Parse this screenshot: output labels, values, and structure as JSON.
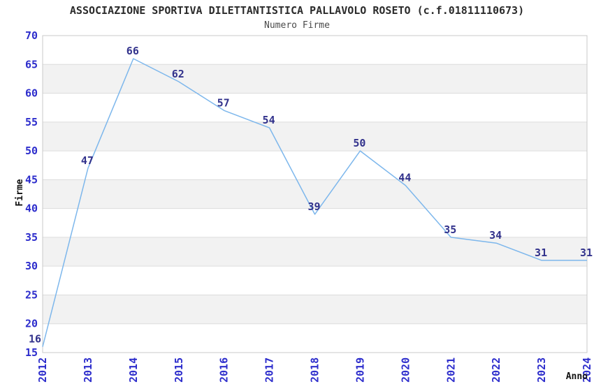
{
  "chart_data": {
    "type": "line",
    "title": "ASSOCIAZIONE SPORTIVA DILETTANTISTICA PALLAVOLO ROSETO (c.f.01811110673)",
    "subtitle": "Numero Firme",
    "xlabel": "Anno",
    "ylabel": "Firme",
    "categories": [
      "2012",
      "2013",
      "2014",
      "2015",
      "2016",
      "2017",
      "2018",
      "2019",
      "2020",
      "2021",
      "2022",
      "2023",
      "2024"
    ],
    "values": [
      16,
      47,
      66,
      62,
      57,
      54,
      39,
      50,
      44,
      35,
      34,
      31,
      31
    ],
    "ylim": [
      15,
      70
    ],
    "ytick_step": 5,
    "yticks": [
      15,
      20,
      25,
      30,
      35,
      40,
      45,
      50,
      55,
      60,
      65,
      70
    ],
    "grid": "horizontal",
    "legend": "none",
    "markers": "none",
    "band_fill": "alternating-horizontal",
    "colors": {
      "line": "#7db7ec",
      "data_label": "#32328c",
      "tick_label": "#2d2dcc",
      "band": "#f2f2f2",
      "gridline": "#dcdcdc",
      "plot_border": "#c9c9c9",
      "title": "#2b2b2b",
      "subtitle": "#4a4a4a",
      "axis_title": "#111111"
    }
  }
}
